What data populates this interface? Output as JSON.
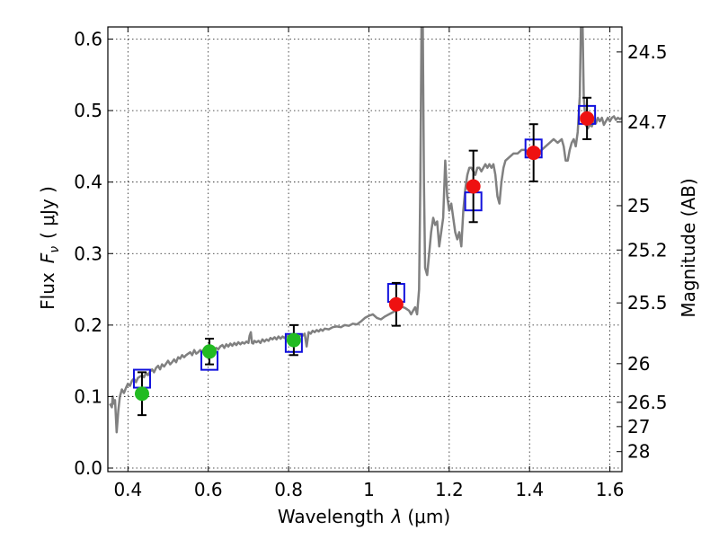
{
  "chart_data": {
    "type": "scatter",
    "title": "",
    "xlabel": "Wavelength",
    "xlabel_symbol": "λ",
    "xlabel_unit": "(μm)",
    "ylabel": "Flux",
    "ylabel_symbol": "F",
    "ylabel_subscript": "ν",
    "ylabel_unit": "( μJy )",
    "y2label": "Magnitude (AB)",
    "xlim": [
      0.35,
      1.63
    ],
    "ylim": [
      -0.005,
      0.617
    ],
    "x_ticks": [
      0.4,
      0.6,
      0.8,
      1.0,
      1.2,
      1.4,
      1.6
    ],
    "x_tick_labels": [
      "0.4",
      "0.6",
      "0.8",
      "1",
      "1.2",
      "1.4",
      "1.6"
    ],
    "y_ticks": [
      0.0,
      0.1,
      0.2,
      0.3,
      0.4,
      0.5,
      0.6
    ],
    "y_tick_labels": [
      "0.0",
      "0.1",
      "0.2",
      "0.3",
      "0.4",
      "0.5",
      "0.6"
    ],
    "y2_ticks": [
      {
        "label": "24.5",
        "flux": 0.582
      },
      {
        "label": "24.7",
        "flux": 0.484
      },
      {
        "label": "25",
        "flux": 0.367
      },
      {
        "label": "25.2",
        "flux": 0.305
      },
      {
        "label": "25.5",
        "flux": 0.231
      },
      {
        "label": "26",
        "flux": 0.146
      },
      {
        "label": "26.5",
        "flux": 0.092
      },
      {
        "label": "27",
        "flux": 0.058
      },
      {
        "label": "28",
        "flux": 0.023
      }
    ],
    "grid": true,
    "colors": {
      "model": "#808080",
      "green_points": "#22bb22",
      "red_points": "#ee1111",
      "model_boxes": "#1111dd",
      "errorbars": "#000000"
    },
    "series": [
      {
        "kind": "line",
        "points": [
          [
            0.355,
            0.09
          ],
          [
            0.36,
            0.085
          ],
          [
            0.362,
            0.1
          ],
          [
            0.365,
            0.09
          ],
          [
            0.368,
            0.095
          ],
          [
            0.372,
            0.05
          ],
          [
            0.376,
            0.08
          ],
          [
            0.38,
            0.1
          ],
          [
            0.385,
            0.11
          ],
          [
            0.39,
            0.105
          ],
          [
            0.395,
            0.112
          ],
          [
            0.4,
            0.118
          ],
          [
            0.405,
            0.115
          ],
          [
            0.41,
            0.122
          ],
          [
            0.415,
            0.125
          ],
          [
            0.42,
            0.12
          ],
          [
            0.425,
            0.126
          ],
          [
            0.43,
            0.128
          ],
          [
            0.435,
            0.13
          ],
          [
            0.44,
            0.127
          ],
          [
            0.445,
            0.133
          ],
          [
            0.45,
            0.13
          ],
          [
            0.455,
            0.135
          ],
          [
            0.46,
            0.138
          ],
          [
            0.465,
            0.134
          ],
          [
            0.47,
            0.14
          ],
          [
            0.475,
            0.143
          ],
          [
            0.48,
            0.138
          ],
          [
            0.485,
            0.145
          ],
          [
            0.49,
            0.142
          ],
          [
            0.495,
            0.146
          ],
          [
            0.5,
            0.15
          ],
          [
            0.505,
            0.145
          ],
          [
            0.51,
            0.148
          ],
          [
            0.515,
            0.152
          ],
          [
            0.52,
            0.148
          ],
          [
            0.525,
            0.155
          ],
          [
            0.53,
            0.153
          ],
          [
            0.535,
            0.158
          ],
          [
            0.54,
            0.155
          ],
          [
            0.545,
            0.158
          ],
          [
            0.55,
            0.16
          ],
          [
            0.555,
            0.162
          ],
          [
            0.56,
            0.158
          ],
          [
            0.565,
            0.165
          ],
          [
            0.57,
            0.16
          ],
          [
            0.575,
            0.162
          ],
          [
            0.58,
            0.165
          ],
          [
            0.585,
            0.163
          ],
          [
            0.59,
            0.167
          ],
          [
            0.595,
            0.165
          ],
          [
            0.6,
            0.168
          ],
          [
            0.605,
            0.165
          ],
          [
            0.61,
            0.167
          ],
          [
            0.615,
            0.165
          ],
          [
            0.62,
            0.168
          ],
          [
            0.625,
            0.166
          ],
          [
            0.63,
            0.17
          ],
          [
            0.635,
            0.172
          ],
          [
            0.64,
            0.168
          ],
          [
            0.645,
            0.173
          ],
          [
            0.65,
            0.17
          ],
          [
            0.655,
            0.174
          ],
          [
            0.66,
            0.171
          ],
          [
            0.665,
            0.175
          ],
          [
            0.67,
            0.172
          ],
          [
            0.675,
            0.176
          ],
          [
            0.68,
            0.173
          ],
          [
            0.685,
            0.176
          ],
          [
            0.69,
            0.174
          ],
          [
            0.695,
            0.177
          ],
          [
            0.7,
            0.175
          ],
          [
            0.703,
            0.185
          ],
          [
            0.706,
            0.19
          ],
          [
            0.709,
            0.175
          ],
          [
            0.712,
            0.174
          ],
          [
            0.715,
            0.178
          ],
          [
            0.72,
            0.176
          ],
          [
            0.725,
            0.178
          ],
          [
            0.73,
            0.175
          ],
          [
            0.735,
            0.18
          ],
          [
            0.74,
            0.177
          ],
          [
            0.745,
            0.18
          ],
          [
            0.75,
            0.178
          ],
          [
            0.755,
            0.182
          ],
          [
            0.76,
            0.18
          ],
          [
            0.765,
            0.183
          ],
          [
            0.77,
            0.18
          ],
          [
            0.775,
            0.184
          ],
          [
            0.78,
            0.181
          ],
          [
            0.785,
            0.184
          ],
          [
            0.79,
            0.182
          ],
          [
            0.795,
            0.185
          ],
          [
            0.8,
            0.183
          ],
          [
            0.805,
            0.185
          ],
          [
            0.81,
            0.184
          ],
          [
            0.815,
            0.186
          ],
          [
            0.82,
            0.185
          ],
          [
            0.825,
            0.183
          ],
          [
            0.83,
            0.186
          ],
          [
            0.835,
            0.185
          ],
          [
            0.84,
            0.188
          ],
          [
            0.845,
            0.17
          ],
          [
            0.85,
            0.19
          ],
          [
            0.855,
            0.188
          ],
          [
            0.86,
            0.192
          ],
          [
            0.865,
            0.19
          ],
          [
            0.87,
            0.193
          ],
          [
            0.875,
            0.191
          ],
          [
            0.88,
            0.194
          ],
          [
            0.885,
            0.192
          ],
          [
            0.89,
            0.195
          ],
          [
            0.9,
            0.194
          ],
          [
            0.91,
            0.197
          ],
          [
            0.92,
            0.198
          ],
          [
            0.93,
            0.197
          ],
          [
            0.94,
            0.2
          ],
          [
            0.95,
            0.199
          ],
          [
            0.96,
            0.202
          ],
          [
            0.97,
            0.201
          ],
          [
            0.98,
            0.205
          ],
          [
            0.99,
            0.21
          ],
          [
            1.0,
            0.213
          ],
          [
            1.01,
            0.215
          ],
          [
            1.02,
            0.21
          ],
          [
            1.03,
            0.208
          ],
          [
            1.04,
            0.212
          ],
          [
            1.05,
            0.215
          ],
          [
            1.06,
            0.218
          ],
          [
            1.07,
            0.222
          ],
          [
            1.08,
            0.226
          ],
          [
            1.09,
            0.224
          ],
          [
            1.1,
            0.22
          ],
          [
            1.105,
            0.215
          ],
          [
            1.11,
            0.22
          ],
          [
            1.115,
            0.225
          ],
          [
            1.12,
            0.215
          ],
          [
            1.125,
            0.25
          ],
          [
            1.128,
            0.4
          ],
          [
            1.131,
            0.62
          ],
          [
            1.134,
            0.62
          ],
          [
            1.137,
            0.4
          ],
          [
            1.14,
            0.28
          ],
          [
            1.145,
            0.27
          ],
          [
            1.15,
            0.3
          ],
          [
            1.155,
            0.33
          ],
          [
            1.16,
            0.35
          ],
          [
            1.165,
            0.34
          ],
          [
            1.17,
            0.345
          ],
          [
            1.175,
            0.31
          ],
          [
            1.18,
            0.33
          ],
          [
            1.185,
            0.35
          ],
          [
            1.19,
            0.43
          ],
          [
            1.195,
            0.38
          ],
          [
            1.2,
            0.36
          ],
          [
            1.205,
            0.37
          ],
          [
            1.21,
            0.35
          ],
          [
            1.215,
            0.33
          ],
          [
            1.22,
            0.32
          ],
          [
            1.225,
            0.33
          ],
          [
            1.23,
            0.31
          ],
          [
            1.235,
            0.36
          ],
          [
            1.24,
            0.39
          ],
          [
            1.245,
            0.41
          ],
          [
            1.25,
            0.42
          ],
          [
            1.255,
            0.42
          ],
          [
            1.26,
            0.415
          ],
          [
            1.265,
            0.41
          ],
          [
            1.27,
            0.42
          ],
          [
            1.275,
            0.42
          ],
          [
            1.28,
            0.415
          ],
          [
            1.285,
            0.42
          ],
          [
            1.29,
            0.425
          ],
          [
            1.295,
            0.42
          ],
          [
            1.3,
            0.425
          ],
          [
            1.305,
            0.42
          ],
          [
            1.31,
            0.425
          ],
          [
            1.315,
            0.41
          ],
          [
            1.32,
            0.38
          ],
          [
            1.325,
            0.37
          ],
          [
            1.33,
            0.4
          ],
          [
            1.335,
            0.42
          ],
          [
            1.34,
            0.43
          ],
          [
            1.35,
            0.435
          ],
          [
            1.36,
            0.44
          ],
          [
            1.37,
            0.44
          ],
          [
            1.38,
            0.445
          ],
          [
            1.39,
            0.445
          ],
          [
            1.4,
            0.44
          ],
          [
            1.41,
            0.445
          ],
          [
            1.42,
            0.44
          ],
          [
            1.43,
            0.445
          ],
          [
            1.44,
            0.45
          ],
          [
            1.45,
            0.455
          ],
          [
            1.46,
            0.46
          ],
          [
            1.47,
            0.455
          ],
          [
            1.48,
            0.46
          ],
          [
            1.485,
            0.45
          ],
          [
            1.49,
            0.43
          ],
          [
            1.495,
            0.43
          ],
          [
            1.5,
            0.445
          ],
          [
            1.505,
            0.455
          ],
          [
            1.51,
            0.46
          ],
          [
            1.515,
            0.45
          ],
          [
            1.52,
            0.47
          ],
          [
            1.525,
            0.52
          ],
          [
            1.528,
            0.62
          ],
          [
            1.532,
            0.62
          ],
          [
            1.535,
            0.52
          ],
          [
            1.54,
            0.48
          ],
          [
            1.545,
            0.475
          ],
          [
            1.55,
            0.48
          ],
          [
            1.555,
            0.478
          ],
          [
            1.56,
            0.485
          ],
          [
            1.565,
            0.482
          ],
          [
            1.57,
            0.49
          ],
          [
            1.575,
            0.485
          ],
          [
            1.58,
            0.49
          ],
          [
            1.585,
            0.48
          ],
          [
            1.59,
            0.485
          ],
          [
            1.595,
            0.49
          ],
          [
            1.6,
            0.485
          ],
          [
            1.605,
            0.49
          ],
          [
            1.61,
            0.492
          ],
          [
            1.615,
            0.487
          ],
          [
            1.62,
            0.49
          ],
          [
            1.625,
            0.488
          ],
          [
            1.63,
            0.49
          ]
        ]
      },
      {
        "kind": "points",
        "marker": "circle",
        "color": "#22bb22",
        "x": [
          0.435,
          0.603,
          0.813
        ],
        "y": [
          0.104,
          0.163,
          0.179
        ],
        "err": [
          0.03,
          0.018,
          0.021
        ]
      },
      {
        "kind": "points",
        "marker": "circle",
        "color": "#ee1111",
        "x": [
          1.068,
          1.26,
          1.41,
          1.543
        ],
        "y": [
          0.229,
          0.394,
          0.441,
          0.489
        ],
        "err": [
          0.03,
          0.05,
          0.04,
          0.029
        ]
      },
      {
        "kind": "points",
        "marker": "square",
        "color": "#1111dd",
        "x": [
          0.435,
          0.603,
          0.813,
          1.068,
          1.26,
          1.41,
          1.543
        ],
        "y": [
          0.125,
          0.15,
          0.175,
          0.245,
          0.373,
          0.447,
          0.494
        ]
      }
    ]
  }
}
